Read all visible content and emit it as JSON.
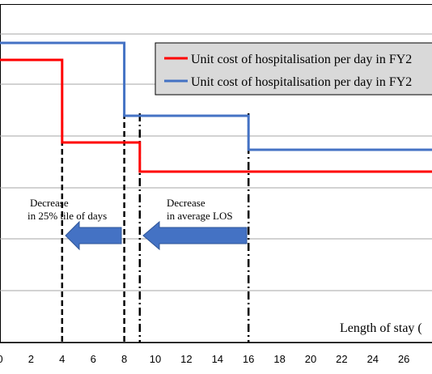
{
  "chart_data": {
    "type": "line",
    "xlabel": "Length of stay (",
    "x_ticks": [
      0,
      2,
      4,
      6,
      8,
      10,
      12,
      14,
      16,
      18,
      20,
      22,
      24,
      26
    ],
    "xlim": [
      0,
      28
    ],
    "grid": true,
    "legend_position": "top-right",
    "series": [
      {
        "name": "Unit cost of hospitalisation per day in FY2",
        "color": "#ff0000",
        "points": [
          [
            0,
            74
          ],
          [
            4,
            74
          ],
          [
            4,
            176
          ],
          [
            9,
            176
          ],
          [
            9,
            212
          ],
          [
            28,
            212
          ]
        ]
      },
      {
        "name": "Unit cost of hospitalisation per day in FY2",
        "color": "#4472c4",
        "points": [
          [
            0,
            53
          ],
          [
            8,
            53
          ],
          [
            8,
            143
          ],
          [
            16,
            143
          ],
          [
            16,
            185
          ],
          [
            28,
            185
          ]
        ]
      }
    ],
    "vlines": [
      {
        "x": 4,
        "style": "dash"
      },
      {
        "x": 8,
        "style": "dash"
      },
      {
        "x": 9,
        "style": "dashdot"
      },
      {
        "x": 16,
        "style": "dashdot"
      }
    ],
    "annotations": [
      {
        "id": "ann1",
        "lines": [
          "Decrease",
          "in 25% tile  of days"
        ]
      },
      {
        "id": "ann2",
        "lines": [
          "Decrease",
          "in average LOS"
        ]
      }
    ],
    "arrow_color": "#4472c4"
  }
}
